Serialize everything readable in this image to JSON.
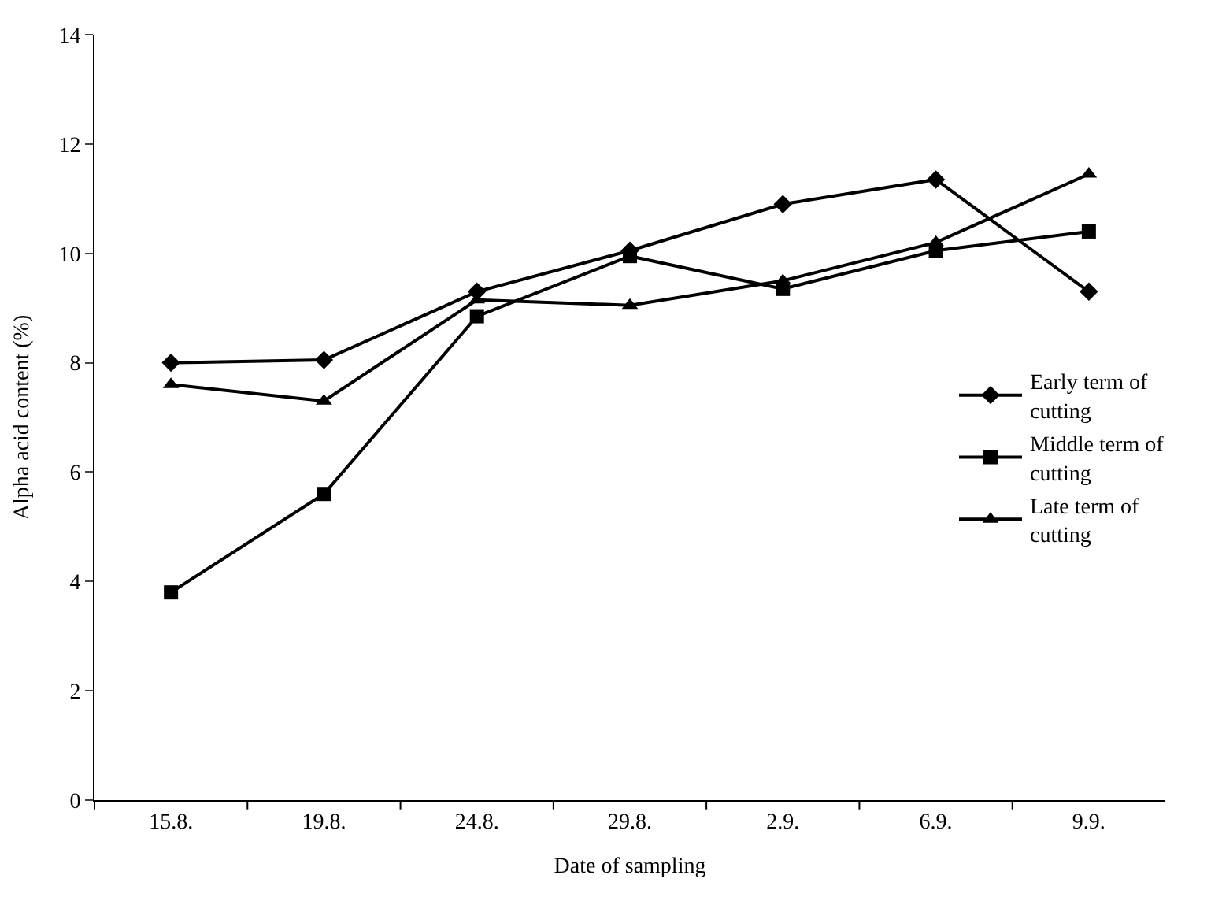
{
  "chart_data": {
    "type": "line",
    "xlabel": "Date of sampling",
    "ylabel": "Alpha acid content (%)",
    "categories": [
      "15.8.",
      "19.8.",
      "24.8.",
      "29.8.",
      "2.9.",
      "6.9.",
      "9.9."
    ],
    "ylim": [
      0,
      14
    ],
    "yticks": [
      0,
      2,
      4,
      6,
      8,
      10,
      12,
      14
    ],
    "grid": false,
    "legend": "right",
    "line_style": "solid",
    "series": [
      {
        "name": "Early term of cutting",
        "color": "#000000",
        "marker": "diamond",
        "values": [
          8.0,
          8.05,
          9.3,
          10.05,
          10.9,
          11.35,
          9.3
        ]
      },
      {
        "name": "Middle term of cutting",
        "color": "#000000",
        "marker": "square",
        "values": [
          3.8,
          5.6,
          8.85,
          9.95,
          9.35,
          10.05,
          10.4
        ]
      },
      {
        "name": "Late term of cutting",
        "color": "#000000",
        "marker": "triangle",
        "values": [
          7.6,
          7.3,
          9.15,
          9.05,
          9.5,
          10.2,
          11.45
        ]
      }
    ]
  }
}
